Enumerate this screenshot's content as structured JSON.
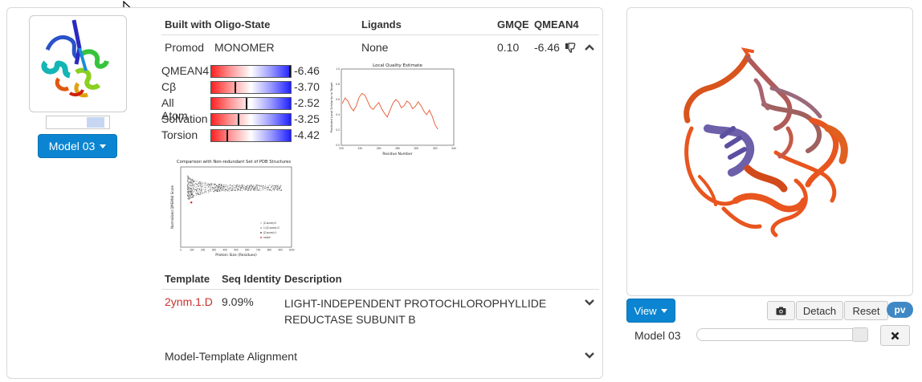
{
  "models_table": {
    "headers": {
      "built_with": "Built with",
      "oligo_state": "Oligo-State",
      "ligands": "Ligands",
      "gmqe": "GMQE",
      "qmean4": "QMEAN4"
    },
    "row": {
      "built_with": "Promod",
      "oligo_state": "MONOMER",
      "ligands": "None",
      "gmqe": "0.10",
      "qmean4": "-6.46"
    }
  },
  "model_selector": {
    "label": "Model 03",
    "thumbnail_slider_fraction": 0.8
  },
  "quality": [
    {
      "label": "QMEAN4",
      "value": "-6.46",
      "marker": 1.0
    },
    {
      "label": "Cβ",
      "value": "-3.70",
      "marker": 0.3
    },
    {
      "label": "All Atom",
      "value": "-2.52",
      "marker": 0.44
    },
    {
      "label": "Solvation",
      "value": "-3.25",
      "marker": 0.34
    },
    {
      "label": "Torsion",
      "value": "-4.42",
      "marker": 0.2
    }
  ],
  "local_quality_plot": {
    "chart_data": {
      "type": "line",
      "title": "Local Quality Estimate",
      "xlabel": "Residue Number",
      "ylabel": "Predicted Local Similarity to Target",
      "xlim": [
        220,
        340
      ],
      "ylim": [
        0.0,
        1.0
      ],
      "xticks": [
        "220",
        "240",
        "260",
        "280",
        "300",
        "320",
        "340"
      ],
      "yticks": [
        "0.0",
        "0.2",
        "0.4",
        "0.6",
        "0.8",
        "1.0"
      ],
      "grid": false,
      "series": [
        {
          "color": "#e8542e",
          "x": [
            221,
            224,
            227,
            230,
            233,
            236,
            239,
            242,
            245,
            248,
            251,
            254,
            257,
            260,
            263,
            266,
            269,
            272,
            275,
            278,
            281,
            284,
            287,
            290,
            293,
            296,
            299,
            302,
            305,
            308,
            311,
            314,
            317,
            320,
            323
          ],
          "y": [
            0.55,
            0.62,
            0.58,
            0.5,
            0.45,
            0.52,
            0.63,
            0.68,
            0.66,
            0.58,
            0.5,
            0.47,
            0.52,
            0.56,
            0.48,
            0.42,
            0.37,
            0.46,
            0.55,
            0.6,
            0.57,
            0.49,
            0.52,
            0.58,
            0.55,
            0.48,
            0.51,
            0.57,
            0.52,
            0.45,
            0.4,
            0.46,
            0.38,
            0.27,
            0.21
          ]
        }
      ]
    }
  },
  "comparison_plot": {
    "chart_data": {
      "type": "scatter",
      "title": "Comparison with Non-redundant Set of PDB Structures",
      "xlabel": "Protein Size (Residues)",
      "ylabel": "Normalized QMEAN4 Score",
      "xlim": [
        0,
        1000
      ],
      "ylim": [
        -5,
        2
      ],
      "xticks": [
        "0",
        "100",
        "200",
        "300",
        "400",
        "500",
        "600",
        "700",
        "800",
        "900",
        "1000"
      ],
      "legend": [
        "|Z-score|>2",
        "1<|Z-score|<2",
        "|Z-score|<1",
        "model"
      ],
      "legend_position": "bottom-right",
      "model_point": {
        "x": 96,
        "y": -1.1
      }
    }
  },
  "templates_table": {
    "headers": {
      "template": "Template",
      "seq_identity": "Seq Identity",
      "description": "Description"
    },
    "row": {
      "template": "2ynm.1.D",
      "seq_identity": "9.09%",
      "description_line1": "LIGHT-INDEPENDENT PROTOCHLOROPHYLLIDE",
      "description_line2": "REDUCTASE SUBUNIT B"
    }
  },
  "alignment_section": {
    "label": "Model-Template Alignment"
  },
  "viewer": {
    "view_label": "View",
    "detach_label": "Detach",
    "reset_label": "Reset",
    "pv_label": "pv",
    "model_label": "Model 03",
    "camera_icon": "camera-icon",
    "close_icon": "close-icon"
  },
  "colors": {
    "primary": "#0b85d1",
    "link": "#c9302c",
    "structure_orange": "#e8551f",
    "structure_violet": "#6d5fa8"
  }
}
